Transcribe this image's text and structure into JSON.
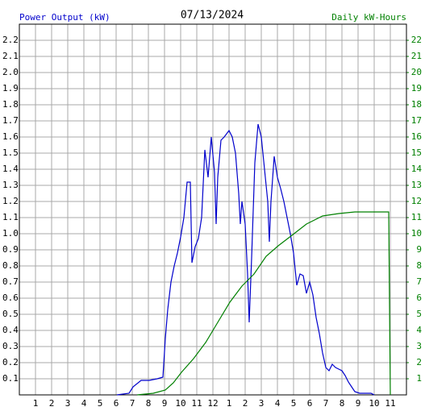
{
  "chart_data": {
    "type": "line",
    "title": "07/13/2024",
    "xlim": [
      0,
      24
    ],
    "xticks": [
      1,
      2,
      3,
      4,
      5,
      6,
      7,
      8,
      9,
      10,
      11,
      12,
      {
        "value": 13,
        "label": "1"
      },
      {
        "value": 14,
        "label": "2"
      },
      {
        "value": 15,
        "label": "3"
      },
      {
        "value": 16,
        "label": "4"
      },
      {
        "value": 17,
        "label": "5"
      },
      {
        "value": 18,
        "label": "6"
      },
      {
        "value": 19,
        "label": "7"
      },
      {
        "value": 20,
        "label": "8"
      },
      {
        "value": 21,
        "label": "9"
      },
      {
        "value": 22,
        "label": "10"
      },
      {
        "value": 23,
        "label": "11"
      }
    ],
    "ylim": [
      0,
      2.3
    ],
    "yticks": [
      0.1,
      0.2,
      0.3,
      0.4,
      0.5,
      0.6,
      0.7,
      0.8,
      0.9,
      {
        "value": 1,
        "label": "1.0"
      },
      1.1,
      1.2,
      1.3,
      1.4,
      1.5,
      1.6,
      1.7,
      1.8,
      1.9,
      {
        "value": 2,
        "label": "2.0"
      },
      2.1,
      2.2
    ],
    "y2lim": [
      0,
      23
    ],
    "y2ticks": [
      1,
      2,
      3,
      4,
      5,
      6,
      7,
      8,
      9,
      10,
      11,
      12,
      13,
      14,
      15,
      16,
      17,
      18,
      19,
      20,
      21,
      22
    ],
    "grid": true,
    "series": [
      {
        "name": "Power Output (kW)",
        "color": "#0000cc",
        "x": [
          6.05,
          6.8,
          7.05,
          7.55,
          8.05,
          8.55,
          8.9,
          9.05,
          9.2,
          9.4,
          9.6,
          9.8,
          10.0,
          10.2,
          10.4,
          10.6,
          10.7,
          10.9,
          11.1,
          11.3,
          11.5,
          11.7,
          11.9,
          12.1,
          12.2,
          12.3,
          12.5,
          12.7,
          13.0,
          13.2,
          13.4,
          13.6,
          13.7,
          13.8,
          14.0,
          14.15,
          14.25,
          14.4,
          14.6,
          14.8,
          15.0,
          15.2,
          15.4,
          15.5,
          15.6,
          15.8,
          16.0,
          16.2,
          16.4,
          16.6,
          16.8,
          17.0,
          17.2,
          17.4,
          17.6,
          17.8,
          18.0,
          18.2,
          18.4,
          18.6,
          18.8,
          19.0,
          19.2,
          19.4,
          19.6,
          19.8,
          20.0,
          20.2,
          20.4,
          20.6,
          20.8,
          21.1,
          21.8,
          22.0
        ],
        "values": [
          0,
          0.01,
          0.05,
          0.09,
          0.09,
          0.1,
          0.11,
          0.35,
          0.53,
          0.7,
          0.8,
          0.88,
          0.98,
          1.1,
          1.32,
          1.32,
          0.82,
          0.92,
          0.97,
          1.1,
          1.52,
          1.35,
          1.6,
          1.38,
          1.06,
          1.35,
          1.58,
          1.6,
          1.64,
          1.6,
          1.5,
          1.25,
          1.06,
          1.2,
          1.06,
          0.75,
          0.45,
          0.85,
          1.44,
          1.68,
          1.6,
          1.4,
          1.2,
          0.95,
          1.2,
          1.48,
          1.35,
          1.28,
          1.2,
          1.1,
          1.0,
          0.88,
          0.68,
          0.75,
          0.74,
          0.63,
          0.7,
          0.62,
          0.48,
          0.38,
          0.26,
          0.17,
          0.15,
          0.19,
          0.17,
          0.16,
          0.15,
          0.12,
          0.08,
          0.05,
          0.02,
          0.01,
          0.01,
          0
        ]
      },
      {
        "name": "Daily kW-Hours",
        "color": "#008000",
        "axis": "y2",
        "x": [
          7.3,
          8.3,
          9.05,
          9.55,
          10.05,
          10.8,
          11.55,
          12.3,
          13.05,
          13.8,
          14.55,
          15.3,
          16.05,
          16.9,
          17.8,
          18.8,
          19.8,
          20.8,
          22.9,
          23.0
        ],
        "values": [
          0,
          0.1,
          0.3,
          0.75,
          1.4,
          2.25,
          3.25,
          4.5,
          5.75,
          6.75,
          7.5,
          8.6,
          9.25,
          9.9,
          10.6,
          11.1,
          11.25,
          11.35,
          11.35,
          0
        ]
      }
    ]
  }
}
